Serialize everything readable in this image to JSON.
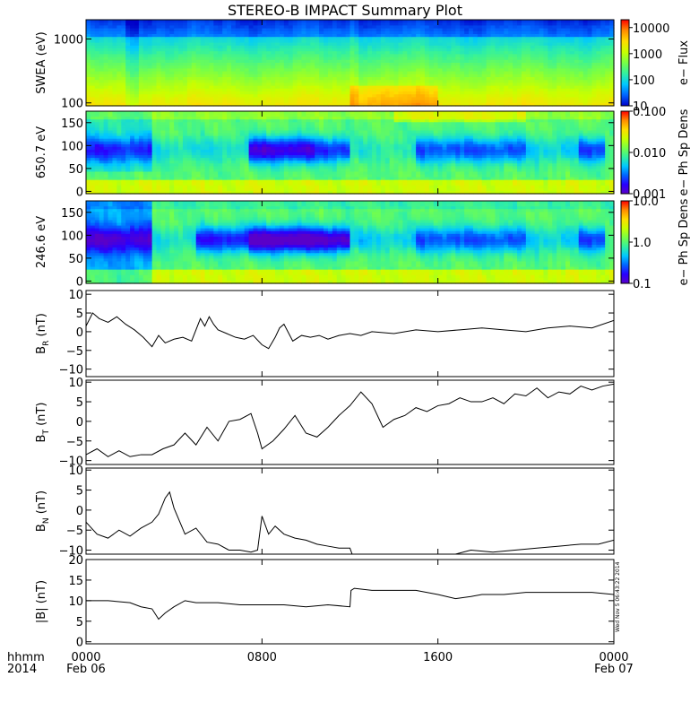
{
  "title": "STEREO-B IMPACT Summary Plot",
  "time_axis": {
    "hhmm_label": "hhmm",
    "year_label": "2014",
    "ticks": [
      {
        "t": 0,
        "label": "0000",
        "date": "Feb 06"
      },
      {
        "t": 8,
        "label": "0800",
        "date": ""
      },
      {
        "t": 16,
        "label": "1600",
        "date": ""
      },
      {
        "t": 24,
        "label": "0000",
        "date": "Feb 07"
      }
    ],
    "range_hours": [
      0,
      24
    ]
  },
  "timestamp_note": "Wed Nov 5 06:43:22 2014",
  "colors": {
    "jet": [
      "#0000c8",
      "#0064ff",
      "#00c8ff",
      "#32f0a0",
      "#78ff46",
      "#c8ff00",
      "#ffdc00",
      "#ff8c00",
      "#ff0000"
    ],
    "jet_purple": [
      "#5a00c8",
      "#2800ff",
      "#0064ff",
      "#00c8ff",
      "#32f0a0",
      "#78ff46",
      "#c8ff00",
      "#ffdc00",
      "#ff8c00",
      "#ff0000"
    ],
    "line": "#000000"
  },
  "chart_data": [
    {
      "type": "heatmap",
      "ylabel": "SWEA (eV)",
      "ylim": [
        90,
        2000
      ],
      "yscale": "log",
      "yticks": [
        {
          "v": 100,
          "label": "100"
        },
        {
          "v": 1000,
          "label": "1000"
        }
      ],
      "colorbar": {
        "label": "e− Flux",
        "scale": "log",
        "range": [
          10,
          20000
        ],
        "ticks": [
          {
            "v": 10,
            "label": "10"
          },
          {
            "v": 100,
            "label": "100"
          },
          {
            "v": 1000,
            "label": "1000"
          },
          {
            "v": 10000,
            "label": "10000"
          }
        ]
      }
    },
    {
      "type": "heatmap",
      "ylabel": "650.7 eV",
      "ylim": [
        -5,
        175
      ],
      "yscale": "linear",
      "yticks": [
        {
          "v": 0,
          "label": "0"
        },
        {
          "v": 50,
          "label": "50"
        },
        {
          "v": 100,
          "label": "100"
        },
        {
          "v": 150,
          "label": "150"
        }
      ],
      "colorbar": {
        "label": "e− Ph Sp Dens",
        "scale": "log",
        "range": [
          0.001,
          0.1
        ],
        "ticks": [
          {
            "v": 0.001,
            "label": "0.001"
          },
          {
            "v": 0.01,
            "label": "0.010"
          },
          {
            "v": 0.1,
            "label": "0.100"
          }
        ]
      }
    },
    {
      "type": "heatmap",
      "ylabel": "246.6 eV",
      "ylim": [
        -5,
        175
      ],
      "yscale": "linear",
      "yticks": [
        {
          "v": 0,
          "label": "0"
        },
        {
          "v": 50,
          "label": "50"
        },
        {
          "v": 100,
          "label": "100"
        },
        {
          "v": 150,
          "label": "150"
        }
      ],
      "colorbar": {
        "label": "e− Ph Sp Dens",
        "scale": "log",
        "range": [
          0.1,
          10
        ],
        "ticks": [
          {
            "v": 0.1,
            "label": "0.1"
          },
          {
            "v": 1,
            "label": "1.0"
          },
          {
            "v": 10,
            "label": "10.0"
          }
        ]
      }
    },
    {
      "type": "line",
      "ylabel": "B",
      "ylabel_sub": "R",
      "ylabel_unit": " (nT)",
      "ylim": [
        -12,
        11
      ],
      "yticks": [
        {
          "v": -10,
          "label": "−10"
        },
        {
          "v": -5,
          "label": "−5"
        },
        {
          "v": 0,
          "label": "0"
        },
        {
          "v": 5,
          "label": "5"
        },
        {
          "v": 10,
          "label": "10"
        }
      ],
      "series": [
        {
          "x": [
            0,
            0.3,
            0.6,
            1.0,
            1.4,
            1.8,
            2.2,
            2.6,
            3.0,
            3.3,
            3.6,
            4.0,
            4.4,
            4.8,
            5.2,
            5.4,
            5.6,
            5.8,
            6.0,
            6.4,
            6.8,
            7.2,
            7.6,
            8.0,
            8.3,
            8.6,
            8.8,
            9.0,
            9.4,
            9.8,
            10.2,
            10.6,
            11.0,
            11.5,
            12.0,
            12.5,
            13.0,
            14,
            15,
            16,
            17,
            18,
            19,
            20,
            21,
            22,
            23,
            24
          ],
          "y": [
            1.5,
            5.0,
            3.5,
            2.5,
            4.0,
            2.0,
            0.5,
            -1.5,
            -4.0,
            -1.0,
            -3.0,
            -2.0,
            -1.5,
            -2.5,
            3.5,
            1.5,
            4.0,
            2.0,
            0.5,
            -0.5,
            -1.5,
            -2.0,
            -1.0,
            -3.5,
            -4.5,
            -1.5,
            1.0,
            2.0,
            -2.5,
            -1.0,
            -1.5,
            -1.0,
            -2.0,
            -1.0,
            -0.5,
            -1.0,
            0.0,
            -0.5,
            0.5,
            0.0,
            0.5,
            1.0,
            0.5,
            0.0,
            1.0,
            1.5,
            1.0,
            3.0
          ]
        }
      ]
    },
    {
      "type": "line",
      "ylabel": "B",
      "ylabel_sub": "T",
      "ylabel_unit": " (nT)",
      "ylim": [
        -11,
        10.5
      ],
      "yticks": [
        {
          "v": -10,
          "label": "−10"
        },
        {
          "v": -5,
          "label": "−5"
        },
        {
          "v": 0,
          "label": "0"
        },
        {
          "v": 5,
          "label": "5"
        },
        {
          "v": 10,
          "label": "10"
        }
      ],
      "series": [
        {
          "x": [
            0,
            0.5,
            1.0,
            1.5,
            2.0,
            2.5,
            3.0,
            3.5,
            4.0,
            4.5,
            5.0,
            5.5,
            6.0,
            6.5,
            7.0,
            7.5,
            7.8,
            8.0,
            8.5,
            9.0,
            9.5,
            10.0,
            10.5,
            11.0,
            11.5,
            12.0,
            12.5,
            13.0,
            13.5,
            14.0,
            14.5,
            15.0,
            15.5,
            16.0,
            16.5,
            17.0,
            17.5,
            18.0,
            18.5,
            19.0,
            19.5,
            20.0,
            20.5,
            21.0,
            21.5,
            22.0,
            22.5,
            23.0,
            23.5,
            24.0
          ],
          "y": [
            -8.5,
            -7.0,
            -9.0,
            -7.5,
            -9.0,
            -8.5,
            -8.5,
            -7.0,
            -6.0,
            -3.0,
            -6.0,
            -1.5,
            -5.0,
            0.0,
            0.5,
            2.0,
            -3.0,
            -7.0,
            -5.0,
            -2.0,
            1.5,
            -3.0,
            -4.0,
            -1.5,
            1.5,
            4.0,
            7.5,
            4.5,
            -1.5,
            0.5,
            1.5,
            3.5,
            2.5,
            4.0,
            4.5,
            6.0,
            5.0,
            5.0,
            6.0,
            4.5,
            7.0,
            6.5,
            8.5,
            6.0,
            7.5,
            7.0,
            9.0,
            8.0,
            9.0,
            9.5
          ]
        }
      ]
    },
    {
      "type": "line",
      "ylabel": "B",
      "ylabel_sub": "N",
      "ylabel_unit": " (nT)",
      "ylim": [
        -11,
        10.5
      ],
      "yticks": [
        {
          "v": -10,
          "label": "−10"
        },
        {
          "v": -5,
          "label": "−5"
        },
        {
          "v": 0,
          "label": "0"
        },
        {
          "v": 5,
          "label": "5"
        },
        {
          "v": 10,
          "label": "10"
        }
      ],
      "series": [
        {
          "x": [
            0,
            0.5,
            1.0,
            1.5,
            2.0,
            2.5,
            3.0,
            3.3,
            3.6,
            3.8,
            4.0,
            4.5,
            5.0,
            5.5,
            6.0,
            6.5,
            7.0,
            7.5,
            7.8,
            8.0,
            8.3,
            8.6,
            9.0,
            9.5,
            10.0,
            10.5,
            11.0,
            11.5,
            12.0,
            12.1
          ],
          "y": [
            -3.0,
            -6.0,
            -7.0,
            -5.0,
            -6.5,
            -4.5,
            -3.0,
            -1.0,
            3.0,
            4.5,
            0.5,
            -6.0,
            -4.5,
            -8.0,
            -8.5,
            -10.0,
            -10.0,
            -10.5,
            -10.0,
            -1.5,
            -6.0,
            -4.0,
            -6.0,
            -7.0,
            -7.5,
            -8.5,
            -9.0,
            -9.5,
            -9.5,
            -11.0
          ]
        },
        {
          "x": [
            16.8,
            17.5,
            18.5,
            19.5,
            20.5,
            21.5,
            22.5,
            23.3,
            24.0
          ],
          "y": [
            -11.0,
            -10.0,
            -10.5,
            -10.0,
            -9.5,
            -9.0,
            -8.5,
            -8.5,
            -7.5
          ]
        }
      ]
    },
    {
      "type": "line",
      "ylabel": "|B| (nT)",
      "ylim": [
        -0.5,
        20
      ],
      "yticks": [
        {
          "v": 0,
          "label": "0"
        },
        {
          "v": 5,
          "label": "5"
        },
        {
          "v": 10,
          "label": "10"
        },
        {
          "v": 15,
          "label": "15"
        },
        {
          "v": 20,
          "label": "20"
        }
      ],
      "series": [
        {
          "x": [
            0,
            1,
            2,
            2.5,
            3.0,
            3.3,
            3.6,
            4.0,
            4.5,
            5.0,
            6,
            7,
            8,
            9,
            10,
            11,
            12,
            12.05,
            12.2,
            13,
            14,
            15,
            16,
            16.8,
            17.5,
            18,
            19,
            20,
            21,
            22,
            23,
            24
          ],
          "y": [
            10,
            10,
            9.5,
            8.5,
            8.0,
            5.5,
            7.0,
            8.5,
            10.0,
            9.5,
            9.5,
            9.0,
            9.0,
            9.0,
            8.5,
            9.0,
            8.5,
            12.5,
            13.0,
            12.5,
            12.5,
            12.5,
            11.5,
            10.5,
            11.0,
            11.5,
            11.5,
            12.0,
            12.0,
            12.0,
            12.0,
            11.5
          ]
        }
      ]
    }
  ]
}
